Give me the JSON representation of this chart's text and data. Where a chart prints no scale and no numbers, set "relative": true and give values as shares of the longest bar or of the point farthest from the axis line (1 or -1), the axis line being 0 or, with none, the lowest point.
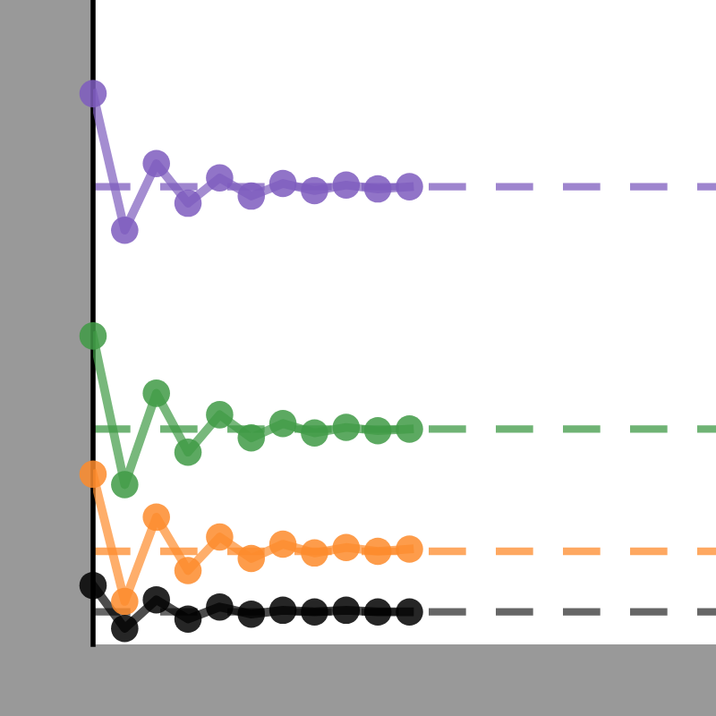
{
  "chart_data": {
    "type": "line",
    "relative": true,
    "marker": "circle",
    "line_style": "solid",
    "grid": false,
    "categories": [
      null,
      null,
      null,
      null,
      null,
      null,
      null,
      null,
      null,
      null,
      null
    ],
    "series": [
      {
        "color": "#7e5cbe",
        "values": [
          1,
          0.752,
          0.873,
          0.801,
          0.847,
          0.814,
          0.837,
          0.824,
          0.834,
          0.827,
          0.831
        ]
      },
      {
        "color": "#3f9a45",
        "values": [
          0.56,
          0.29,
          0.456,
          0.349,
          0.417,
          0.375,
          0.401,
          0.384,
          0.394,
          0.388,
          0.391
        ]
      },
      {
        "color": "#fd8b2c",
        "values": [
          0.309,
          0.078,
          0.231,
          0.134,
          0.195,
          0.156,
          0.182,
          0.166,
          0.176,
          0.169,
          0.173
        ]
      },
      {
        "color": "#000000",
        "values": [
          0.107,
          0.029,
          0.081,
          0.046,
          0.068,
          0.055,
          0.062,
          0.059,
          0.062,
          0.059,
          0.059
        ]
      }
    ],
    "ref_lines": [
      {
        "axis": "y",
        "value": 0.831,
        "color": "#7e5cbe",
        "line_style": "dashed"
      },
      {
        "axis": "y",
        "value": 0.391,
        "color": "#3f9a45",
        "line_style": "dashed"
      },
      {
        "axis": "y",
        "value": 0.169,
        "color": "#fd8b2c",
        "line_style": "dashed"
      },
      {
        "axis": "y",
        "value": 0.059,
        "color": "#333333",
        "line_style": "dashed"
      }
    ]
  }
}
